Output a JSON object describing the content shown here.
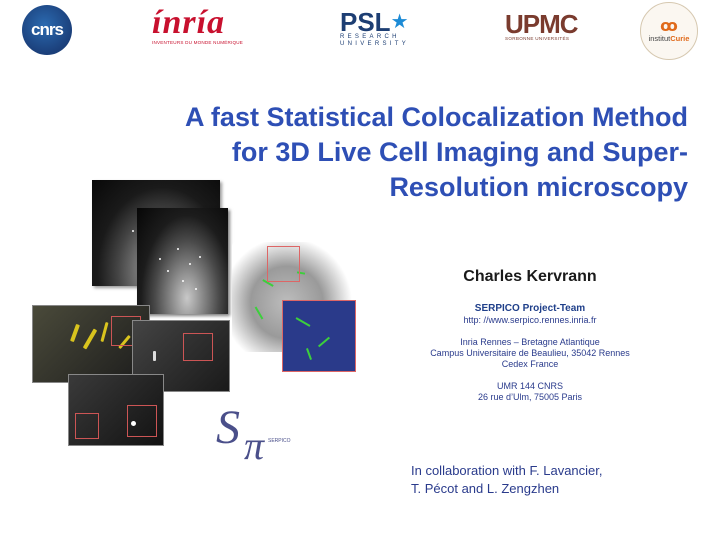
{
  "logos": {
    "cnrs": "cnrs",
    "inria_word": "ínría",
    "inria_tag": "INVENTEURS DU MONDE NUMÉRIQUE",
    "psl_word": "PSL",
    "psl_sub": "RESEARCH UNIVERSITY",
    "upmc_word": "UPMC",
    "upmc_sub": "SORBONNE UNIVERSITÉS",
    "curie_prefix": "institut",
    "curie_name": "Curie",
    "serpico_label": "SERPICO"
  },
  "title": {
    "line1": "A fast Statistical Colocalization Method",
    "line2": "for 3D Live Cell Imaging and Super-",
    "line3": "Resolution microscopy"
  },
  "author": {
    "name": "Charles Kervrann",
    "team": "SERPICO Project-Team",
    "url": "http: //www.serpico.rennes.inria.fr",
    "affil1": "Inria Rennes – Bretagne Atlantique",
    "affil2": "Campus Universitaire de Beaulieu, 35042 Rennes",
    "affil3": "Cedex France",
    "unit": "UMR 144 CNRS",
    "address": "26 rue d’Ulm, 75005 Paris"
  },
  "collab": {
    "line1": "In collaboration with F. Lavancier,",
    "line2": "T. Pécot and L. Zengzhen"
  }
}
